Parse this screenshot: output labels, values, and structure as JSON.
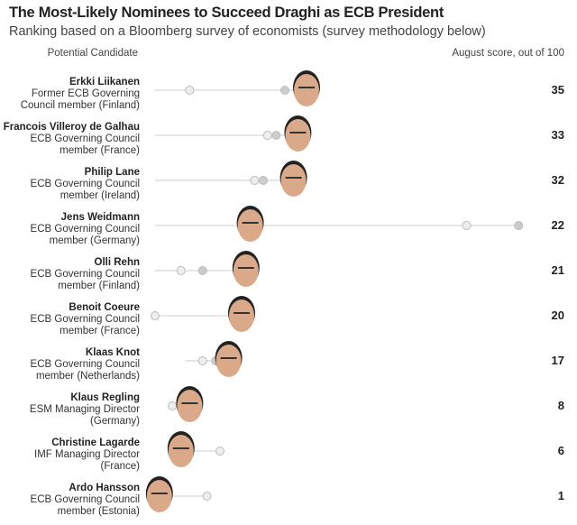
{
  "title": "The Most-Likely Nominees to Succeed Draghi as ECB President",
  "subtitle": "Ranking based on a Bloomberg survey of economists (survey methodology below)",
  "headers": {
    "left": "Potential Candidate",
    "right": "August score, out of 100"
  },
  "chart_data": {
    "type": "dot-plot",
    "title": "The Most-Likely Nominees to Succeed Draghi as ECB President",
    "xlim": [
      0,
      85
    ],
    "colors": {
      "line": "#dddddd",
      "dot_dark": "#cccccc",
      "dot_light": "#eeeeee",
      "face": "#d9a98a"
    },
    "rows": [
      {
        "name": "Erkki Liikanen",
        "role1": "Former ECB Governing",
        "role2": "Council member (Finland)",
        "score": 35,
        "prior": [
          8,
          30
        ],
        "range": [
          0,
          35
        ]
      },
      {
        "name": "Francois Villeroy de Galhau",
        "role1": "ECB Governing Council",
        "role2": "member (France)",
        "score": 33,
        "prior": [
          26,
          28
        ],
        "range": [
          0,
          33
        ]
      },
      {
        "name": "Philip Lane",
        "role1": "ECB Governing Council",
        "role2": "member (Ireland)",
        "score": 32,
        "prior": [
          23,
          25
        ],
        "range": [
          0,
          32
        ]
      },
      {
        "name": "Jens Weidmann",
        "role1": "ECB Governing Council",
        "role2": "member (Germany)",
        "score": 22,
        "prior": [
          72,
          84
        ],
        "range": [
          0,
          84
        ]
      },
      {
        "name": "Olli Rehn",
        "role1": "ECB Governing Council",
        "role2": "member (Finland)",
        "score": 21,
        "prior": [
          6,
          11
        ],
        "range": [
          0,
          21
        ]
      },
      {
        "name": "Benoit Coeure",
        "role1": "ECB Governing Council",
        "role2": "member (France)",
        "score": 20,
        "prior": [
          0
        ],
        "range": [
          0,
          20
        ]
      },
      {
        "name": "Klaas Knot",
        "role1": "ECB Governing Council",
        "role2": "member (Netherlands)",
        "score": 17,
        "prior": [
          11,
          14
        ],
        "range": [
          7,
          17
        ]
      },
      {
        "name": "Klaus Regling",
        "role1": "ESM Managing Director",
        "role2": "(Germany)",
        "score": 8,
        "prior": [
          4
        ],
        "range": [
          3,
          8
        ]
      },
      {
        "name": "Christine Lagarde",
        "role1": "IMF Managing Director",
        "role2": "(France)",
        "score": 6,
        "prior": [
          15
        ],
        "range": [
          6,
          15
        ]
      },
      {
        "name": "Ardo Hansson",
        "role1": "ECB Governing Council",
        "role2": "member (Estonia)",
        "score": 1,
        "prior": [
          12
        ],
        "range": [
          1,
          12
        ]
      }
    ]
  }
}
